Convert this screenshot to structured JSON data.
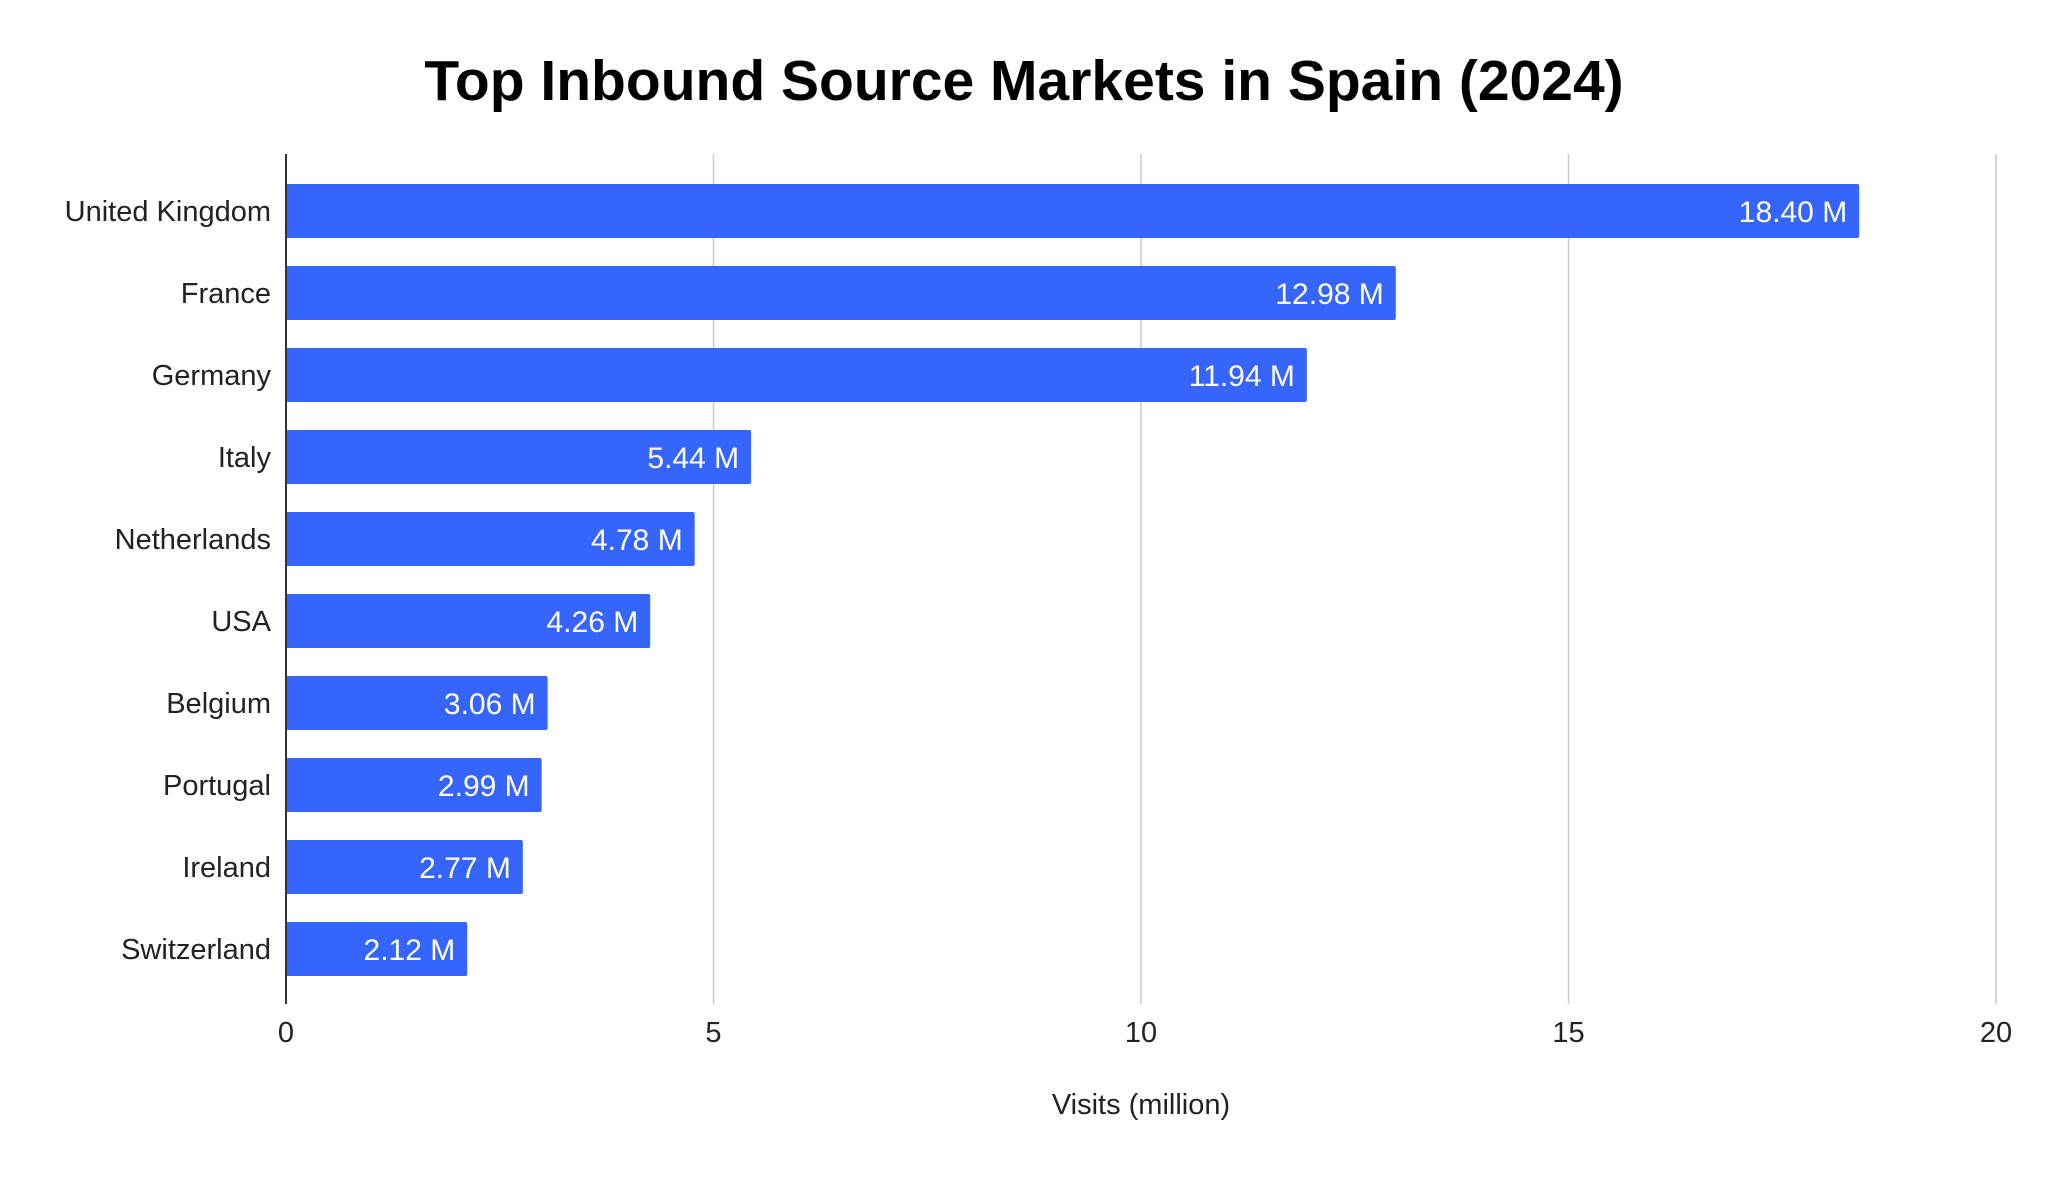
{
  "chart_data": {
    "type": "bar",
    "orientation": "horizontal",
    "title": "Top Inbound Source Markets in Spain (2024)",
    "xlabel": "Visits (million)",
    "ylabel": "",
    "categories": [
      "United Kingdom",
      "France",
      "Germany",
      "Italy",
      "Netherlands",
      "USA",
      "Belgium",
      "Portugal",
      "Ireland",
      "Switzerland"
    ],
    "values": [
      18.4,
      12.98,
      11.94,
      5.44,
      4.78,
      4.26,
      3.06,
      2.99,
      2.77,
      2.12
    ],
    "data_labels": [
      "18.40 M",
      "12.98 M",
      "11.94 M",
      "5.44 M",
      "4.78 M",
      "4.26 M",
      "3.06 M",
      "2.99 M",
      "2.77 M",
      "2.12 M"
    ],
    "xlim": [
      0,
      20
    ],
    "xticks": [
      0,
      5,
      10,
      15,
      20
    ],
    "xtick_labels": [
      "0",
      "5",
      "10",
      "15",
      "20"
    ],
    "grid": "vertical",
    "legend": "none",
    "colors": {
      "bar": "#3565fd",
      "grid": "#cccccc",
      "axis": "#333333",
      "data_label": "#ffffff"
    }
  }
}
